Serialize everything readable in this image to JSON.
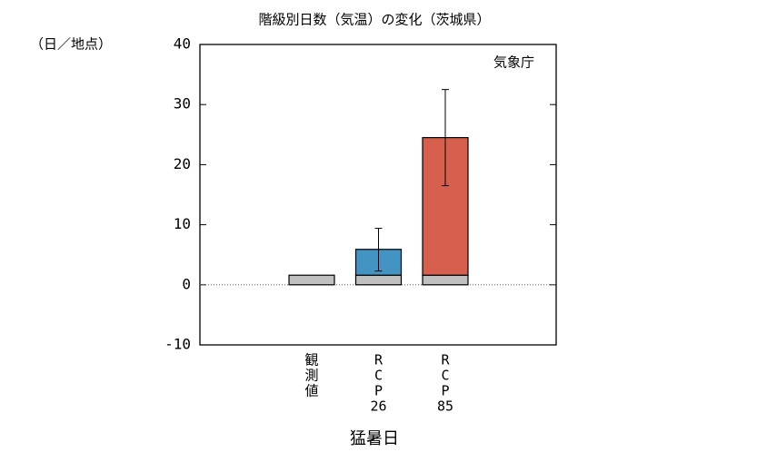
{
  "chart_data": {
    "type": "bar",
    "title": "階級別日数（気温）の変化（茨城県）",
    "y_label": "（日／地点）",
    "source": "気象庁",
    "x_label": "猛暑日",
    "categories": [
      [
        "観",
        "測",
        "値"
      ],
      [
        "R",
        "C",
        "P",
        "26"
      ],
      [
        "R",
        "C",
        "P",
        "85"
      ]
    ],
    "series": [
      {
        "color": "#c0c0c0",
        "values": [
          1.6,
          1.6,
          1.6
        ]
      },
      {
        "color": "#4393c3",
        "values": [
          null,
          4.3,
          null
        ]
      },
      {
        "color": "#d6604d",
        "values": [
          null,
          null,
          22.9
        ]
      }
    ],
    "error_ranges": [
      null,
      [
        2.3,
        9.4
      ],
      [
        16.5,
        32.5
      ]
    ],
    "ylim": [
      -10,
      40
    ],
    "yticks": [
      -10,
      0,
      10,
      20,
      30,
      40
    ],
    "zero_line": true
  }
}
